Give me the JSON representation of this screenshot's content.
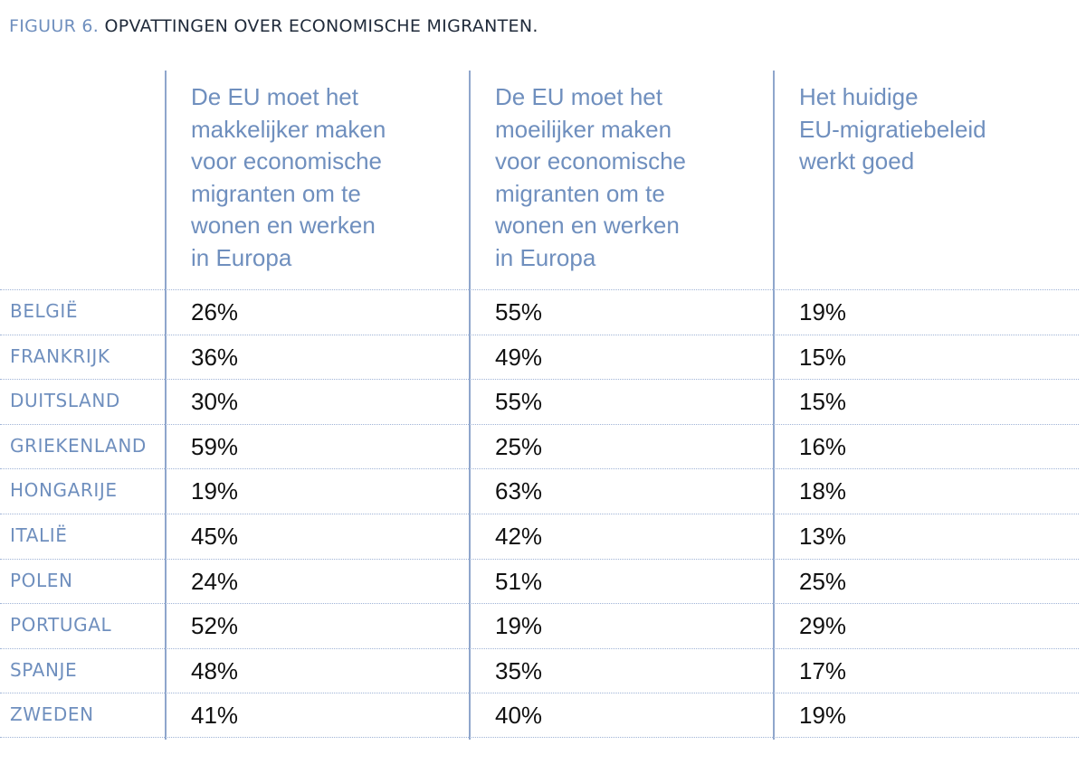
{
  "chart_data": {
    "type": "table",
    "title_lead": "FIGUUR 6.",
    "title": "OPVATTINGEN OVER ECONOMISCHE MIGRANTEN.",
    "columns": [
      "De EU moet het makkelijker maken voor economische migranten om te wonen en werken in Europa",
      "De EU moet het moeilijker maken voor economische migranten om te wonen en werken in Europa",
      "Het huidige EU-migratiebeleid werkt goed"
    ],
    "column_lines": [
      [
        "De EU moet het",
        "makkelijker maken",
        "voor economische",
        "migranten om te",
        "wonen en werken",
        "in Europa"
      ],
      [
        "De EU moet het",
        "moeilijker maken",
        "voor economische",
        "migranten om te",
        "wonen en werken",
        "in Europa"
      ],
      [
        "Het huidige",
        "EU-migratiebeleid",
        "werkt goed"
      ]
    ],
    "rows": [
      {
        "country": "BELGIË",
        "values": [
          "26%",
          "55%",
          "19%"
        ]
      },
      {
        "country": "FRANKRIJK",
        "values": [
          "36%",
          "49%",
          "15%"
        ]
      },
      {
        "country": "DUITSLAND",
        "values": [
          "30%",
          "55%",
          "15%"
        ]
      },
      {
        "country": "GRIEKENLAND",
        "values": [
          "59%",
          "25%",
          "16%"
        ]
      },
      {
        "country": "HONGARIJE",
        "values": [
          "19%",
          "63%",
          "18%"
        ]
      },
      {
        "country": "ITALIË",
        "values": [
          "45%",
          "42%",
          "13%"
        ]
      },
      {
        "country": "POLEN",
        "values": [
          "24%",
          "51%",
          "25%"
        ]
      },
      {
        "country": "PORTUGAL",
        "values": [
          "52%",
          "19%",
          "29%"
        ]
      },
      {
        "country": "SPANJE",
        "values": [
          "48%",
          "35%",
          "17%"
        ]
      },
      {
        "country": "ZWEDEN",
        "values": [
          "41%",
          "40%",
          "19%"
        ]
      }
    ]
  },
  "colors": {
    "accent": "#6f8fbe",
    "line": "#8fa6cc",
    "text": "#111111"
  }
}
